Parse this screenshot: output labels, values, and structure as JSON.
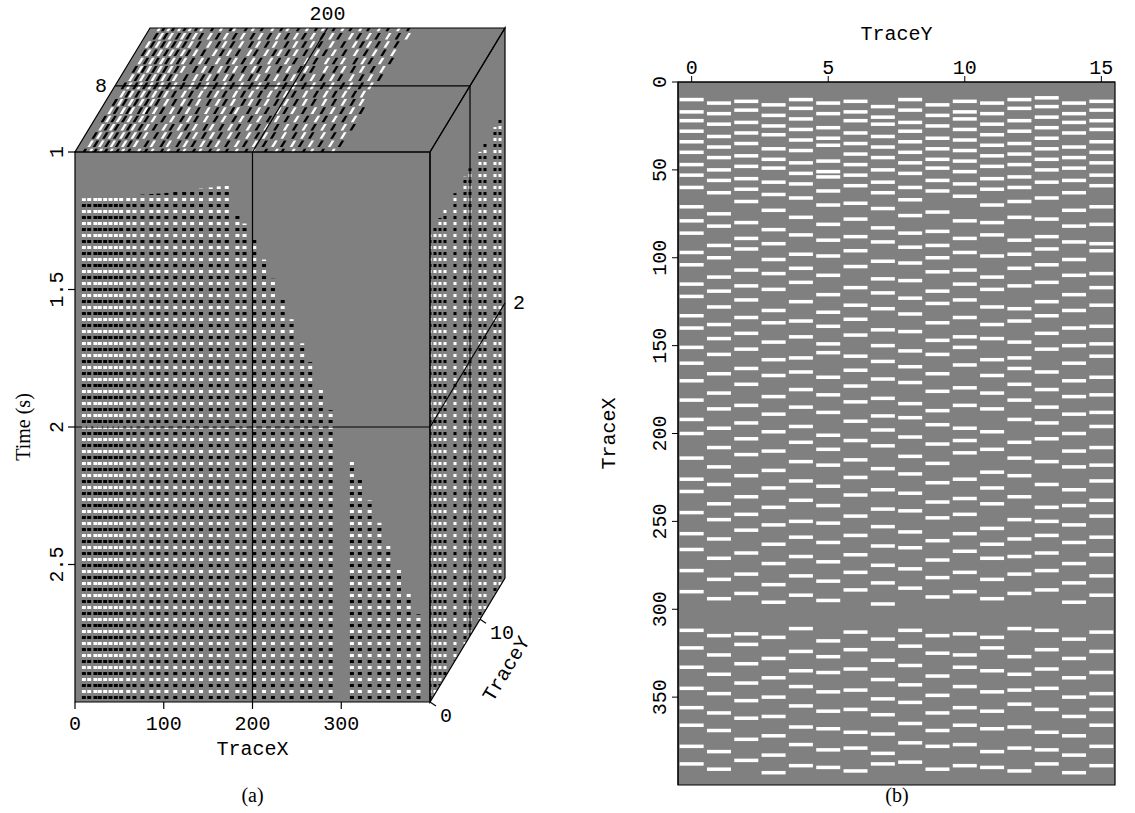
{
  "chart_data": [
    {
      "type": "cube",
      "caption": "(a)",
      "z_label": "Time (s)",
      "x_label": "TraceX",
      "y_label": "TraceY",
      "zlim": [
        1,
        3
      ],
      "zticks": [
        1,
        1.5,
        2,
        2.5
      ],
      "xlim": [
        0,
        400
      ],
      "xticks": [
        0,
        100,
        200,
        300
      ],
      "ylim": [
        0,
        15
      ],
      "yticks": [
        0,
        10
      ],
      "slices": {
        "x": 200,
        "y": 8,
        "z": 2
      },
      "first_arrival": {
        "x": [
          0,
          100,
          175,
          182,
          200,
          250,
          300,
          350,
          400
        ],
        "t": [
          1.17,
          1.15,
          1.12,
          1.22,
          1.3,
          1.65,
          2.03,
          2.4,
          2.78
        ]
      }
    },
    {
      "type": "mask",
      "caption": "(b)",
      "x_label": "TraceY",
      "y_label": "TraceX",
      "xlim": [
        -0.5,
        15.5
      ],
      "xticks": [
        0,
        5,
        10,
        15
      ],
      "ylim": [
        0,
        400
      ],
      "yticks": [
        0,
        50,
        100,
        150,
        200,
        250,
        300,
        350
      ],
      "live_traces": [
        [
          10,
          17,
          22,
          28,
          34,
          40,
          47,
          53,
          60,
          71,
          79,
          86,
          97,
          104,
          115,
          122,
          133,
          140,
          151,
          160,
          170,
          181,
          192,
          200,
          214,
          226,
          233,
          245,
          257,
          266,
          278,
          290,
          312,
          322,
          333,
          345,
          356,
          366,
          378,
          388
        ],
        [
          12,
          18,
          24,
          31,
          37,
          43,
          50,
          56,
          63,
          75,
          82,
          93,
          100,
          111,
          119,
          128,
          138,
          146,
          155,
          166,
          177,
          186,
          197,
          208,
          219,
          229,
          240,
          249,
          260,
          271,
          283,
          294,
          315,
          326,
          337,
          348,
          359,
          369,
          381,
          391
        ],
        [
          11,
          16,
          23,
          29,
          35,
          42,
          48,
          55,
          61,
          68,
          80,
          89,
          95,
          107,
          116,
          124,
          134,
          143,
          152,
          163,
          172,
          184,
          194,
          203,
          212,
          224,
          236,
          246,
          255,
          268,
          280,
          291,
          314,
          320,
          331,
          342,
          352,
          362,
          374,
          386
        ],
        [
          13,
          19,
          25,
          30,
          38,
          44,
          49,
          57,
          64,
          73,
          84,
          92,
          101,
          109,
          118,
          130,
          137,
          148,
          158,
          167,
          179,
          189,
          199,
          210,
          221,
          231,
          242,
          252,
          263,
          274,
          286,
          296,
          316,
          328,
          339,
          350,
          361,
          372,
          383,
          393
        ],
        [
          10,
          15,
          21,
          27,
          33,
          39,
          46,
          52,
          58,
          66,
          77,
          87,
          98,
          106,
          114,
          125,
          136,
          145,
          157,
          165,
          175,
          185,
          196,
          205,
          216,
          227,
          238,
          250,
          259,
          270,
          281,
          292,
          311,
          324,
          335,
          344,
          355,
          367,
          377,
          389
        ],
        [
          12,
          18,
          26,
          32,
          36,
          45,
          51,
          54,
          62,
          70,
          81,
          90,
          99,
          110,
          121,
          131,
          139,
          149,
          154,
          168,
          178,
          188,
          201,
          209,
          218,
          230,
          241,
          251,
          262,
          273,
          284,
          295,
          318,
          327,
          336,
          347,
          358,
          368,
          380,
          390
        ],
        [
          11,
          17,
          22,
          29,
          35,
          41,
          47,
          53,
          59,
          69,
          78,
          88,
          96,
          105,
          117,
          127,
          135,
          144,
          156,
          164,
          173,
          182,
          193,
          204,
          215,
          225,
          235,
          247,
          258,
          269,
          279,
          289,
          313,
          323,
          334,
          346,
          357,
          370,
          379,
          392
        ],
        [
          14,
          20,
          24,
          31,
          37,
          43,
          50,
          57,
          63,
          72,
          83,
          91,
          102,
          112,
          120,
          129,
          141,
          150,
          159,
          169,
          180,
          190,
          198,
          207,
          220,
          232,
          243,
          253,
          264,
          275,
          285,
          297,
          317,
          329,
          340,
          351,
          360,
          371,
          382,
          388
        ],
        [
          10,
          16,
          23,
          28,
          34,
          40,
          46,
          52,
          60,
          67,
          76,
          86,
          94,
          103,
          113,
          123,
          132,
          142,
          153,
          162,
          171,
          183,
          191,
          202,
          213,
          223,
          234,
          244,
          256,
          265,
          277,
          288,
          312,
          321,
          332,
          343,
          353,
          365,
          376,
          387
        ],
        [
          13,
          19,
          25,
          32,
          38,
          44,
          49,
          56,
          62,
          74,
          85,
          93,
          100,
          108,
          119,
          126,
          137,
          147,
          155,
          166,
          176,
          187,
          195,
          206,
          217,
          228,
          239,
          248,
          261,
          272,
          282,
          293,
          315,
          325,
          338,
          349,
          359,
          369,
          378,
          391
        ],
        [
          11,
          17,
          21,
          27,
          33,
          39,
          45,
          51,
          58,
          65,
          79,
          89,
          97,
          107,
          115,
          124,
          134,
          145,
          151,
          161,
          174,
          184,
          197,
          204,
          211,
          226,
          237,
          246,
          257,
          267,
          279,
          290,
          314,
          326,
          333,
          344,
          356,
          366,
          377,
          389
        ],
        [
          12,
          18,
          24,
          30,
          36,
          42,
          48,
          55,
          61,
          70,
          80,
          87,
          99,
          111,
          118,
          128,
          138,
          146,
          158,
          167,
          177,
          186,
          199,
          209,
          222,
          231,
          240,
          254,
          263,
          271,
          283,
          294,
          316,
          322,
          335,
          347,
          358,
          368,
          381,
          390
        ],
        [
          10,
          15,
          22,
          28,
          35,
          41,
          47,
          54,
          60,
          68,
          77,
          90,
          98,
          106,
          116,
          129,
          136,
          148,
          157,
          163,
          172,
          181,
          192,
          205,
          214,
          224,
          236,
          249,
          260,
          270,
          280,
          291,
          311,
          327,
          337,
          346,
          354,
          367,
          379,
          392
        ],
        [
          9,
          14,
          20,
          26,
          32,
          38,
          44,
          50,
          57,
          66,
          78,
          88,
          95,
          104,
          114,
          125,
          133,
          143,
          152,
          165,
          175,
          185,
          194,
          203,
          216,
          229,
          242,
          250,
          258,
          268,
          278,
          289,
          312,
          323,
          334,
          345,
          357,
          370,
          380,
          388
        ],
        [
          12,
          18,
          23,
          29,
          37,
          43,
          49,
          56,
          63,
          73,
          82,
          91,
          101,
          110,
          121,
          130,
          140,
          150,
          160,
          170,
          179,
          189,
          200,
          210,
          219,
          232,
          241,
          252,
          262,
          274,
          285,
          296,
          317,
          328,
          339,
          350,
          361,
          372,
          383,
          393
        ],
        [
          11,
          16,
          22,
          27,
          34,
          40,
          46,
          53,
          59,
          71,
          81,
          92,
          96,
          109,
          117,
          127,
          139,
          149,
          156,
          168,
          178,
          188,
          196,
          208,
          218,
          227,
          238,
          247,
          259,
          269,
          281,
          292,
          313,
          324,
          336,
          348,
          357,
          366,
          378,
          389
        ]
      ]
    }
  ]
}
